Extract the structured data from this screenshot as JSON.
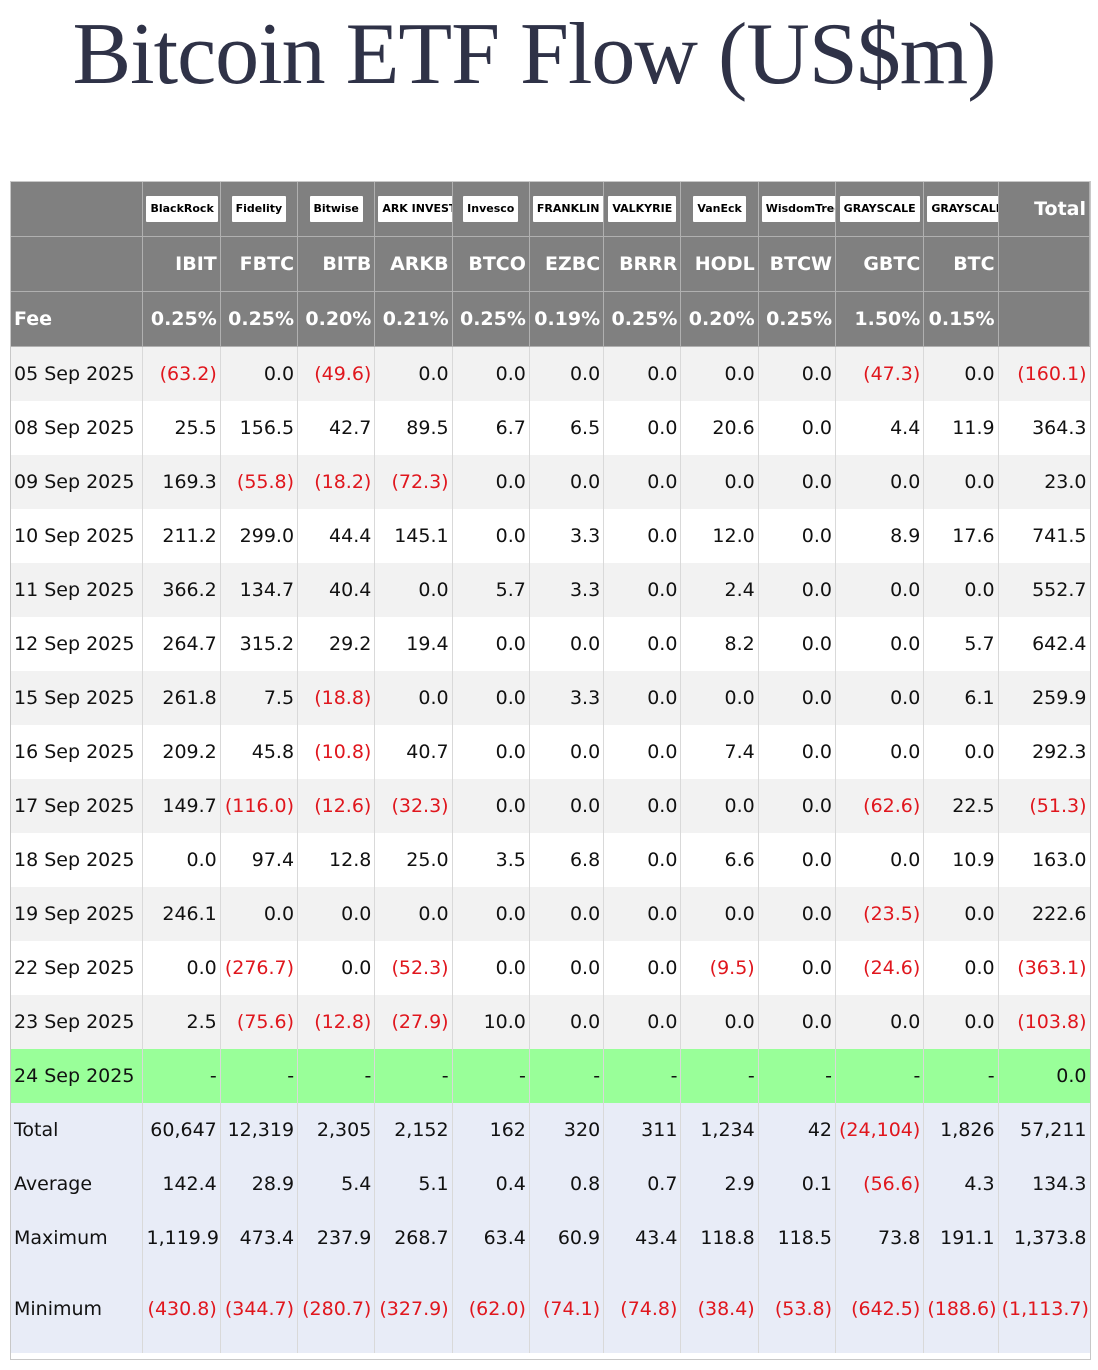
{
  "title": "Bitcoin ETF Flow (US$m)",
  "colors": {
    "header_bg": "#808080",
    "negative": "#e0161d",
    "today_row": "#99ff99",
    "stats_bg": "#e8ecf7",
    "title": "#2f3247"
  },
  "issuers": [
    {
      "logo": "BlackRock",
      "ticker": "IBIT",
      "fee": "0.25%"
    },
    {
      "logo": "Fidelity",
      "ticker": "FBTC",
      "fee": "0.25%"
    },
    {
      "logo": "Bitwise",
      "ticker": "BITB",
      "fee": "0.20%"
    },
    {
      "logo": "ARK INVEST",
      "ticker": "ARKB",
      "fee": "0.21%"
    },
    {
      "logo": "Invesco",
      "ticker": "BTCO",
      "fee": "0.25%"
    },
    {
      "logo": "FRANKLIN TEMPLETON",
      "ticker": "EZBC",
      "fee": "0.19%"
    },
    {
      "logo": "VALKYRIE",
      "ticker": "BRRR",
      "fee": "0.25%"
    },
    {
      "logo": "VanEck",
      "ticker": "HODL",
      "fee": "0.20%"
    },
    {
      "logo": "WisdomTree",
      "ticker": "BTCW",
      "fee": "0.25%"
    },
    {
      "logo": "GRAYSCALE",
      "ticker": "GBTC",
      "fee": "1.50%"
    },
    {
      "logo": "GRAYSCALE",
      "ticker": "BTC",
      "fee": "0.15%"
    }
  ],
  "header": {
    "total_label": "Total",
    "fee_label": "Fee"
  },
  "rows": [
    {
      "date": "05 Sep 2025",
      "values": [
        "(63.2)",
        "0.0",
        "(49.6)",
        "0.0",
        "0.0",
        "0.0",
        "0.0",
        "0.0",
        "0.0",
        "(47.3)",
        "0.0",
        "(160.1)"
      ]
    },
    {
      "date": "08 Sep 2025",
      "values": [
        "25.5",
        "156.5",
        "42.7",
        "89.5",
        "6.7",
        "6.5",
        "0.0",
        "20.6",
        "0.0",
        "4.4",
        "11.9",
        "364.3"
      ]
    },
    {
      "date": "09 Sep 2025",
      "values": [
        "169.3",
        "(55.8)",
        "(18.2)",
        "(72.3)",
        "0.0",
        "0.0",
        "0.0",
        "0.0",
        "0.0",
        "0.0",
        "0.0",
        "23.0"
      ]
    },
    {
      "date": "10 Sep 2025",
      "values": [
        "211.2",
        "299.0",
        "44.4",
        "145.1",
        "0.0",
        "3.3",
        "0.0",
        "12.0",
        "0.0",
        "8.9",
        "17.6",
        "741.5"
      ]
    },
    {
      "date": "11 Sep 2025",
      "values": [
        "366.2",
        "134.7",
        "40.4",
        "0.0",
        "5.7",
        "3.3",
        "0.0",
        "2.4",
        "0.0",
        "0.0",
        "0.0",
        "552.7"
      ]
    },
    {
      "date": "12 Sep 2025",
      "values": [
        "264.7",
        "315.2",
        "29.2",
        "19.4",
        "0.0",
        "0.0",
        "0.0",
        "8.2",
        "0.0",
        "0.0",
        "5.7",
        "642.4"
      ]
    },
    {
      "date": "15 Sep 2025",
      "values": [
        "261.8",
        "7.5",
        "(18.8)",
        "0.0",
        "0.0",
        "3.3",
        "0.0",
        "0.0",
        "0.0",
        "0.0",
        "6.1",
        "259.9"
      ]
    },
    {
      "date": "16 Sep 2025",
      "values": [
        "209.2",
        "45.8",
        "(10.8)",
        "40.7",
        "0.0",
        "0.0",
        "0.0",
        "7.4",
        "0.0",
        "0.0",
        "0.0",
        "292.3"
      ]
    },
    {
      "date": "17 Sep 2025",
      "values": [
        "149.7",
        "(116.0)",
        "(12.6)",
        "(32.3)",
        "0.0",
        "0.0",
        "0.0",
        "0.0",
        "0.0",
        "(62.6)",
        "22.5",
        "(51.3)"
      ]
    },
    {
      "date": "18 Sep 2025",
      "values": [
        "0.0",
        "97.4",
        "12.8",
        "25.0",
        "3.5",
        "6.8",
        "0.0",
        "6.6",
        "0.0",
        "0.0",
        "10.9",
        "163.0"
      ]
    },
    {
      "date": "19 Sep 2025",
      "values": [
        "246.1",
        "0.0",
        "0.0",
        "0.0",
        "0.0",
        "0.0",
        "0.0",
        "0.0",
        "0.0",
        "(23.5)",
        "0.0",
        "222.6"
      ]
    },
    {
      "date": "22 Sep 2025",
      "values": [
        "0.0",
        "(276.7)",
        "0.0",
        "(52.3)",
        "0.0",
        "0.0",
        "0.0",
        "(9.5)",
        "0.0",
        "(24.6)",
        "0.0",
        "(363.1)"
      ]
    },
    {
      "date": "23 Sep 2025",
      "values": [
        "2.5",
        "(75.6)",
        "(12.8)",
        "(27.9)",
        "10.0",
        "0.0",
        "0.0",
        "0.0",
        "0.0",
        "0.0",
        "0.0",
        "(103.8)"
      ]
    },
    {
      "date": "24 Sep 2025",
      "today": true,
      "values": [
        "-",
        "-",
        "-",
        "-",
        "-",
        "-",
        "-",
        "-",
        "-",
        "-",
        "-",
        "0.0"
      ]
    }
  ],
  "stats": [
    {
      "label": "Total",
      "values": [
        "60,647",
        "12,319",
        "2,305",
        "2,152",
        "162",
        "320",
        "311",
        "1,234",
        "42",
        "(24,104)",
        "1,826",
        "57,211"
      ]
    },
    {
      "label": "Average",
      "values": [
        "142.4",
        "28.9",
        "5.4",
        "5.1",
        "0.4",
        "0.8",
        "0.7",
        "2.9",
        "0.1",
        "(56.6)",
        "4.3",
        "134.3"
      ]
    },
    {
      "label": "Maximum",
      "values": [
        "1,119.9",
        "473.4",
        "237.9",
        "268.7",
        "63.4",
        "60.9",
        "43.4",
        "118.8",
        "118.5",
        "73.8",
        "191.1",
        "1,373.8"
      ]
    },
    {
      "label": "Minimum",
      "values": [
        "(430.8)",
        "(344.7)",
        "(280.7)",
        "(327.9)",
        "(62.0)",
        "(74.1)",
        "(74.8)",
        "(38.4)",
        "(53.8)",
        "(642.5)",
        "(188.6)",
        "(1,113.7)"
      ]
    }
  ]
}
